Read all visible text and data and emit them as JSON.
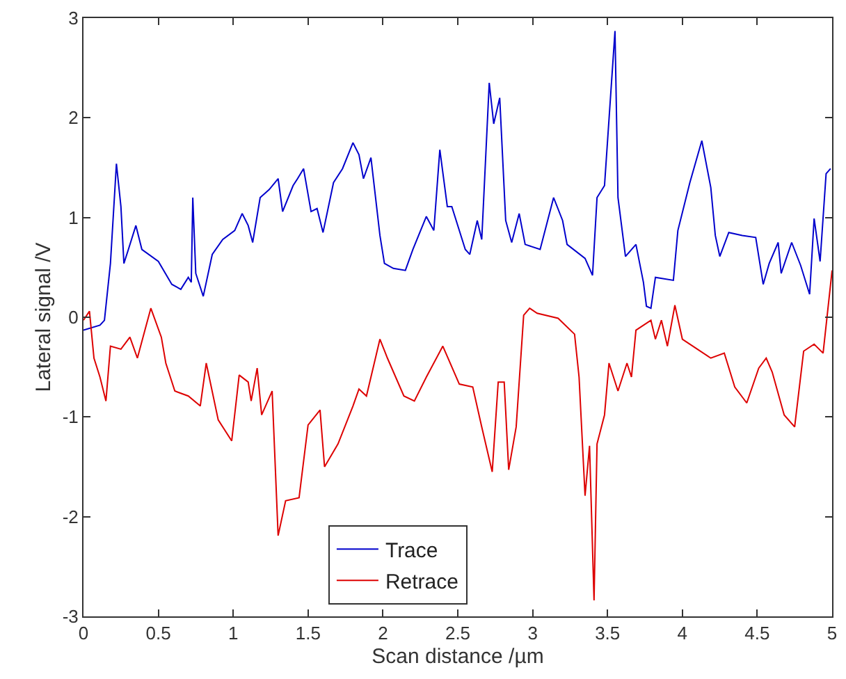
{
  "chart_data": {
    "type": "line",
    "xlabel": "Scan distance /µm",
    "ylabel": "Lateral signal /V",
    "xlim": [
      0,
      5
    ],
    "xticks": [
      0,
      0.5,
      1,
      1.5,
      2,
      2.5,
      3,
      3.5,
      4,
      4.5,
      5
    ],
    "ylim": [
      -3,
      3
    ],
    "yticks": [
      -3,
      -2,
      -1,
      0,
      1,
      2,
      3
    ],
    "legend": "bottom",
    "marker": "none",
    "line_style": "solid",
    "series": [
      {
        "name": "Trace",
        "color": "#0000cc",
        "x": [
          0,
          0.11,
          0.14,
          0.18,
          0.22,
          0.25,
          0.27,
          0.3,
          0.35,
          0.39,
          0.5,
          0.59,
          0.65,
          0.7,
          0.72,
          0.73,
          0.75,
          0.8,
          0.86,
          0.93,
          1.01,
          1.06,
          1.1,
          1.13,
          1.18,
          1.24,
          1.3,
          1.33,
          1.4,
          1.43,
          1.47,
          1.52,
          1.56,
          1.6,
          1.67,
          1.73,
          1.8,
          1.84,
          1.87,
          1.92,
          1.98,
          2.01,
          2.07,
          2.15,
          2.2,
          2.29,
          2.34,
          2.38,
          2.43,
          2.46,
          2.55,
          2.58,
          2.63,
          2.66,
          2.71,
          2.74,
          2.78,
          2.82,
          2.86,
          2.91,
          2.95,
          3.05,
          3.14,
          3.2,
          3.23,
          3.35,
          3.4,
          3.43,
          3.48,
          3.55,
          3.57,
          3.62,
          3.69,
          3.74,
          3.76,
          3.79,
          3.82,
          3.94,
          3.97,
          4.05,
          4.13,
          4.19,
          4.22,
          4.25,
          4.31,
          4.4,
          4.49,
          4.54,
          4.58,
          4.64,
          4.66,
          4.73,
          4.79,
          4.85,
          4.88,
          4.92,
          4.96,
          4.99
        ],
        "values": [
          -0.13,
          -0.08,
          -0.03,
          0.54,
          1.54,
          1.11,
          0.54,
          0.68,
          0.92,
          0.68,
          0.56,
          0.33,
          0.28,
          0.4,
          0.35,
          1.2,
          0.44,
          0.21,
          0.63,
          0.78,
          0.87,
          1.04,
          0.92,
          0.75,
          1.2,
          1.28,
          1.39,
          1.06,
          1.32,
          1.39,
          1.49,
          1.06,
          1.09,
          0.85,
          1.35,
          1.49,
          1.75,
          1.63,
          1.39,
          1.6,
          0.82,
          0.54,
          0.49,
          0.47,
          0.68,
          1.01,
          0.87,
          1.68,
          1.11,
          1.11,
          0.68,
          0.63,
          0.97,
          0.78,
          2.35,
          1.94,
          2.2,
          0.97,
          0.75,
          1.04,
          0.73,
          0.68,
          1.2,
          0.97,
          0.73,
          0.59,
          0.42,
          1.2,
          1.32,
          2.87,
          1.2,
          0.61,
          0.73,
          0.35,
          0.11,
          0.09,
          0.4,
          0.37,
          0.87,
          1.35,
          1.77,
          1.3,
          0.82,
          0.61,
          0.85,
          0.82,
          0.8,
          0.33,
          0.54,
          0.75,
          0.44,
          0.75,
          0.52,
          0.23,
          0.99,
          0.56,
          1.44,
          1.49
        ]
      },
      {
        "name": "Retrace",
        "color": "#dd0000",
        "x": [
          0,
          0.04,
          0.07,
          0.11,
          0.15,
          0.18,
          0.25,
          0.31,
          0.36,
          0.41,
          0.45,
          0.52,
          0.55,
          0.61,
          0.7,
          0.78,
          0.82,
          0.9,
          0.99,
          1.04,
          1.1,
          1.12,
          1.16,
          1.19,
          1.26,
          1.3,
          1.35,
          1.44,
          1.5,
          1.58,
          1.61,
          1.7,
          1.8,
          1.84,
          1.89,
          1.98,
          2.03,
          2.14,
          2.21,
          2.29,
          2.4,
          2.51,
          2.6,
          2.66,
          2.73,
          2.77,
          2.81,
          2.84,
          2.89,
          2.94,
          2.98,
          3.03,
          3.17,
          3.28,
          3.31,
          3.35,
          3.38,
          3.41,
          3.43,
          3.48,
          3.51,
          3.57,
          3.63,
          3.66,
          3.69,
          3.79,
          3.82,
          3.86,
          3.9,
          3.95,
          4.0,
          4.1,
          4.19,
          4.28,
          4.35,
          4.43,
          4.51,
          4.56,
          4.6,
          4.68,
          4.75,
          4.81,
          4.88,
          4.94,
          5.0
        ],
        "values": [
          -0.03,
          0.06,
          -0.41,
          -0.6,
          -0.84,
          -0.29,
          -0.32,
          -0.2,
          -0.41,
          -0.13,
          0.09,
          -0.2,
          -0.46,
          -0.74,
          -0.79,
          -0.89,
          -0.46,
          -1.03,
          -1.24,
          -0.58,
          -0.65,
          -0.84,
          -0.51,
          -0.98,
          -0.74,
          -2.19,
          -1.84,
          -1.81,
          -1.08,
          -0.93,
          -1.5,
          -1.27,
          -0.89,
          -0.72,
          -0.79,
          -0.22,
          -0.41,
          -0.79,
          -0.84,
          -0.6,
          -0.29,
          -0.67,
          -0.7,
          -1.1,
          -1.55,
          -0.65,
          -0.65,
          -1.53,
          -1.1,
          0.02,
          0.09,
          0.04,
          -0.01,
          -0.17,
          -0.6,
          -1.79,
          -1.29,
          -2.84,
          -1.27,
          -0.98,
          -0.46,
          -0.74,
          -0.46,
          -0.6,
          -0.13,
          -0.03,
          -0.22,
          -0.03,
          -0.29,
          0.12,
          -0.22,
          -0.32,
          -0.41,
          -0.36,
          -0.7,
          -0.86,
          -0.51,
          -0.41,
          -0.55,
          -0.98,
          -1.1,
          -0.34,
          -0.27,
          -0.36,
          0.47
        ]
      }
    ]
  }
}
